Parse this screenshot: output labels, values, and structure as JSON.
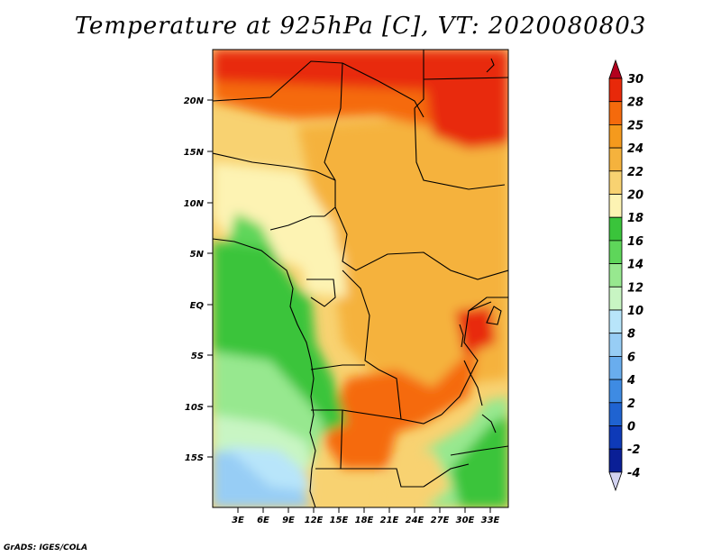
{
  "title": "Temperature at 925hPa [C], VT: 2020080803",
  "credit": "GrADS: IGES/COLA",
  "map": {
    "lat_ticks": [
      "20N",
      "15N",
      "10N",
      "5N",
      "EQ",
      "5S",
      "10S",
      "15S"
    ],
    "lon_ticks": [
      "3E",
      "6E",
      "9E",
      "12E",
      "15E",
      "18E",
      "21E",
      "24E",
      "27E",
      "30E",
      "33E"
    ]
  },
  "colorbar": {
    "labels": [
      "30",
      "28",
      "25",
      "24",
      "22",
      "20",
      "18",
      "16",
      "14",
      "12",
      "10",
      "8",
      "6",
      "4",
      "2",
      "0",
      "-2",
      "-4"
    ],
    "colors": [
      "#b3001e",
      "#e8290a",
      "#f56a0c",
      "#f59a1d",
      "#f5b23d",
      "#f8d271",
      "#fdf3b3",
      "#3ac43b",
      "#5ed65a",
      "#97e88f",
      "#c8f5c3",
      "#b8e5fa",
      "#97cdf5",
      "#69adee",
      "#3e8be3",
      "#1f63d1",
      "#0e3ab8",
      "#0a1f96",
      "#d2d2f0"
    ]
  }
}
